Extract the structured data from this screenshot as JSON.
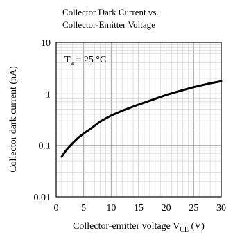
{
  "chart_data": {
    "type": "line",
    "title_lines": [
      "Collector  Dark  Current vs.",
      "Collector-Emitter Voltage"
    ],
    "xlabel": "Collector-emitter voltage V",
    "xlabel_sub": "CE",
    "xlabel_unit": " (V)",
    "ylabel": "Collector dark current (nA)",
    "annotation": {
      "main": "T",
      "sub": "a",
      "rest": " = 25 °C"
    },
    "xlim": [
      0,
      30
    ],
    "ylim": [
      0.01,
      10
    ],
    "yscale": "log",
    "grid": true,
    "x_ticks": [
      "0",
      "5",
      "10",
      "15",
      "20",
      "25",
      "30"
    ],
    "y_ticks": [
      "0.01",
      "0.1",
      "1",
      "10"
    ],
    "series": [
      {
        "x": [
          1,
          1.5,
          2,
          3,
          4,
          5,
          6,
          8,
          10,
          12,
          15,
          18,
          20,
          22,
          25,
          28,
          30
        ],
        "y": [
          0.06,
          0.072,
          0.085,
          0.11,
          0.14,
          0.17,
          0.2,
          0.29,
          0.38,
          0.47,
          0.62,
          0.8,
          0.95,
          1.1,
          1.35,
          1.6,
          1.75
        ]
      }
    ]
  }
}
